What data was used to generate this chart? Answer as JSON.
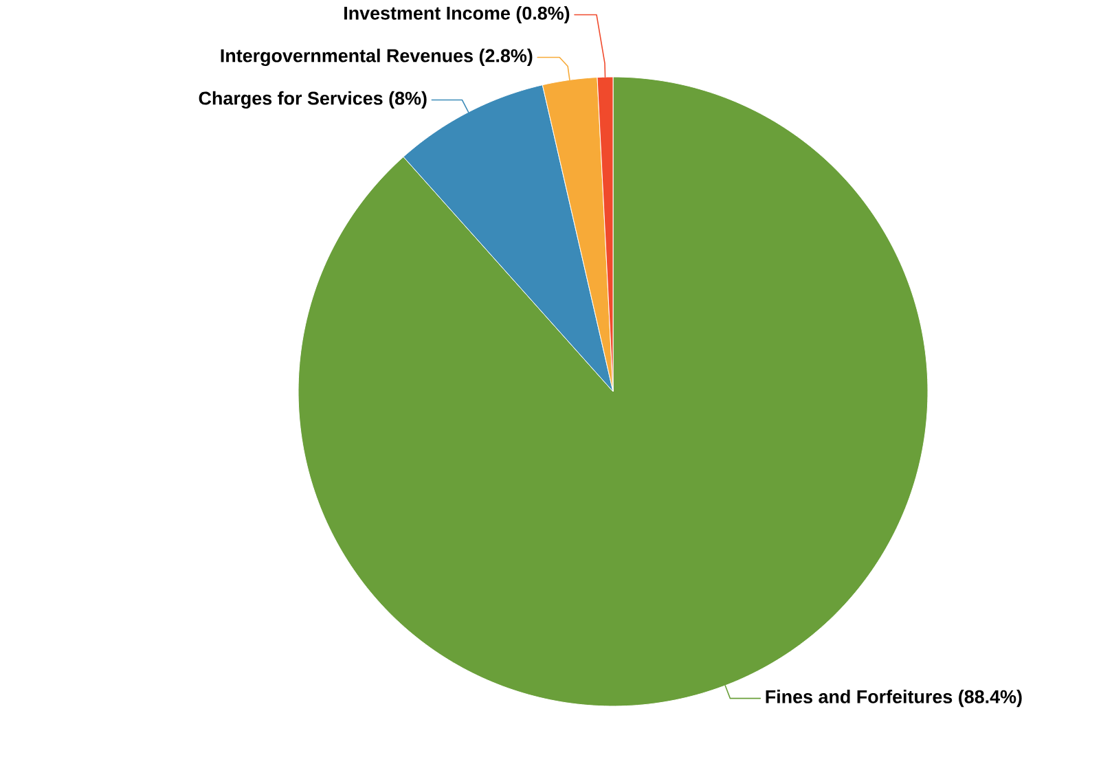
{
  "chart_data": {
    "type": "pie",
    "categories": [
      "Fines and Forfeitures",
      "Charges for Services",
      "Intergovernmental Revenues",
      "Investment Income"
    ],
    "values": [
      88.4,
      8,
      2.8,
      0.8
    ],
    "value_labels": [
      "(88.4%)",
      "(8%)",
      "(2.8%)",
      "(0.8%)"
    ],
    "colors": [
      "#6a9f3a",
      "#3b8ab8",
      "#f7aa38",
      "#f04a2c"
    ]
  }
}
